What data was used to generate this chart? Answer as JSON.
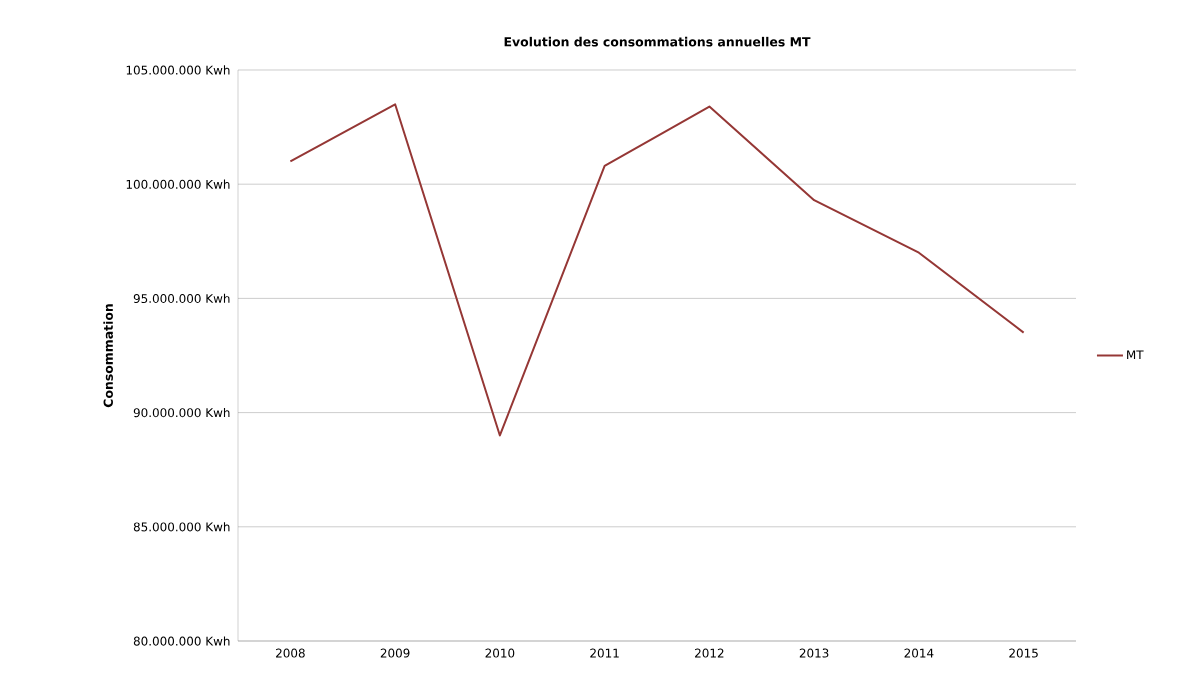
{
  "chart_data": {
    "type": "line",
    "title": "Evolution des consommations annuelles MT",
    "ylabel": "Consommation",
    "categories": [
      "2008",
      "2009",
      "2010",
      "2011",
      "2012",
      "2013",
      "2014",
      "2015"
    ],
    "series": [
      {
        "name": "MT",
        "color": "#953735",
        "values": [
          101000000,
          103500000,
          89000000,
          100800000,
          103400000,
          99300000,
          97000000,
          93500000
        ]
      }
    ],
    "ylim": [
      80000000,
      105000000
    ],
    "yticks": [
      {
        "value": 80000000,
        "label": "80.000.000 Kwh"
      },
      {
        "value": 85000000,
        "label": "85.000.000 Kwh"
      },
      {
        "value": 90000000,
        "label": "90.000.000 Kwh"
      },
      {
        "value": 95000000,
        "label": "95.000.000 Kwh"
      },
      {
        "value": 100000000,
        "label": "100.000.000 Kwh"
      },
      {
        "value": 105000000,
        "label": "105.000.000 Kwh"
      }
    ],
    "grid": "y",
    "legend": "right",
    "marker": "none",
    "line_style": "solid"
  }
}
